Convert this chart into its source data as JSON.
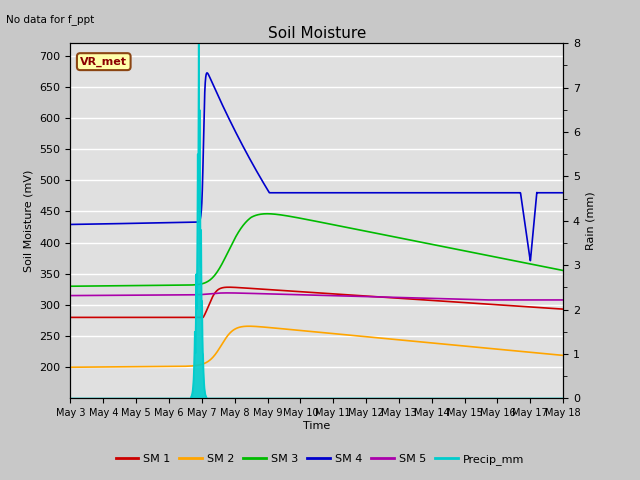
{
  "title": "Soil Moisture",
  "top_left_text": "No data for f_ppt",
  "legend_box_text": "VR_met",
  "xlabel": "Time",
  "ylabel_left": "Soil Moisture (mV)",
  "ylabel_right": "Rain (mm)",
  "ylim_left": [
    150,
    720
  ],
  "ylim_right": [
    0.0,
    8.0
  ],
  "yticks_left": [
    200,
    250,
    300,
    350,
    400,
    450,
    500,
    550,
    600,
    650,
    700
  ],
  "yticks_right": [
    0.0,
    1.0,
    2.0,
    3.0,
    4.0,
    5.0,
    6.0,
    7.0,
    8.0
  ],
  "xtick_labels": [
    "May 3",
    "May 4",
    "May 5",
    "May 6",
    "May 7",
    "May 8",
    "May 9",
    "May 10",
    "May 11",
    "May 12",
    "May 13",
    "May 14",
    "May 15",
    "May 16",
    "May 17",
    "May 18"
  ],
  "fig_bg_color": "#c8c8c8",
  "plot_bg_color": "#e0e0e0",
  "grid_color": "#ffffff",
  "sm1_color": "#cc0000",
  "sm2_color": "#ffa500",
  "sm3_color": "#00bb00",
  "sm4_color": "#0000cc",
  "sm5_color": "#aa00aa",
  "precip_color": "#00cccc",
  "vr_met_bg": "#ffffaa",
  "vr_met_fg": "#8b0000",
  "vr_met_border": "#8b4513"
}
